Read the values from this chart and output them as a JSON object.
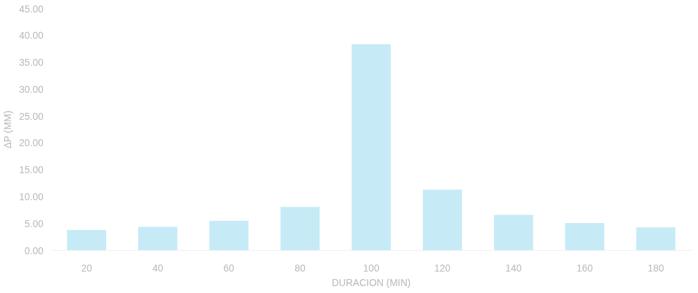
{
  "chart_data": {
    "type": "bar",
    "xlabel": "DURACION (MIN)",
    "ylabel": "ΔP (MM)",
    "categories": [
      "20",
      "40",
      "60",
      "80",
      "100",
      "120",
      "140",
      "160",
      "180"
    ],
    "values": [
      3.8,
      4.4,
      5.5,
      8.1,
      38.4,
      11.3,
      6.6,
      5.1,
      4.3
    ],
    "color": "#c6ebf7",
    "ylim": [
      0,
      45
    ],
    "yticks": [
      {
        "value": 0,
        "label": "0.00"
      },
      {
        "value": 5,
        "label": "5.00"
      },
      {
        "value": 10,
        "label": "10.00"
      },
      {
        "value": 15,
        "label": "15.00"
      },
      {
        "value": 20,
        "label": "20.00"
      },
      {
        "value": 25,
        "label": "25.00"
      },
      {
        "value": 30,
        "label": "30.00"
      },
      {
        "value": 35,
        "label": "35.00"
      },
      {
        "value": 40,
        "label": "40.00"
      },
      {
        "value": 45,
        "label": "45.00"
      }
    ],
    "grid": false
  }
}
